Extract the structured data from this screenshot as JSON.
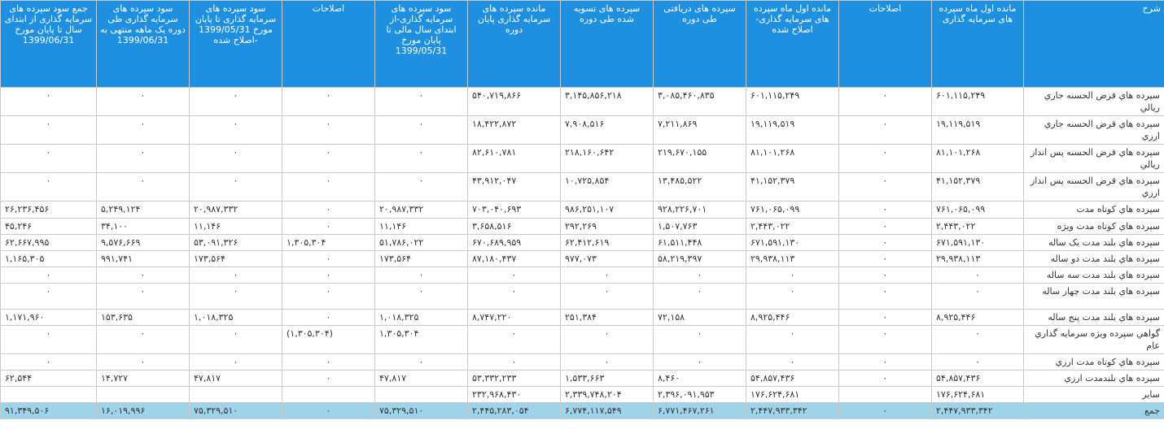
{
  "columns": [
    "شرح",
    "مانده اول ماه سپرده های سرمایه گذاری",
    "اصلاحات",
    "مانده اول ماه سپرده های سرمایه گذاری- اصلاح شده",
    "سپرده های دریافتی طی دوره",
    "سپرده های تسویه شده طی دوره",
    "مانده سپرده های سرمایه گذاری پایان دوره",
    "سود سپرده های سرمایه گذاری-از ابتدای سال مالی تا پایان مورخ 1399/05/31",
    "اصلاحات",
    "سود سپرده های سرمایه گذاری تا پایان مورخ 1399/05/31 -اصلاح شده",
    "سود سپرده های سرمایه گذاری طی دوره یک ماهه منتهی به 1399/06/31",
    "جمع سود سپرده های سرمایه گذاری از ابتدای سال تا پایان مورخ 1399/06/31"
  ],
  "rows": [
    [
      "سپرده هاي قرض الحسنه جاري ريالي",
      "۶۰۱,۱۱۵,۲۴۹",
      "۰",
      "۶۰۱,۱۱۵,۲۴۹",
      "۳,۰۸۵,۴۶۰,۸۳۵",
      "۳,۱۴۵,۸۵۶,۲۱۸",
      "۵۴۰,۷۱۹,۸۶۶",
      "۰",
      "۰",
      "۰",
      "۰",
      "۰"
    ],
    [
      "سپرده هاي قرض الحسنه جاري ارزي",
      "۱۹,۱۱۹,۵۱۹",
      "۰",
      "۱۹,۱۱۹,۵۱۹",
      "۷,۲۱۱,۸۶۹",
      "۷,۹۰۸,۵۱۶",
      "۱۸,۴۲۲,۸۷۲",
      "۰",
      "۰",
      "۰",
      "۰",
      "۰"
    ],
    [
      "سپرده هاي قرض الحسنه پس انداز ريالي",
      "۸۱,۱۰۱,۲۶۸",
      "۰",
      "۸۱,۱۰۱,۲۶۸",
      "۲۱۹,۶۷۰,۱۵۵",
      "۲۱۸,۱۶۰,۶۴۲",
      "۸۲,۶۱۰,۷۸۱",
      "۰",
      "۰",
      "۰",
      "۰",
      "۰"
    ],
    [
      "سپرده هاي قرض الحسنه پس انداز ارزي",
      "۴۱,۱۵۲,۳۷۹",
      "۰",
      "۴۱,۱۵۲,۳۷۹",
      "۱۳,۴۸۵,۵۲۲",
      "۱۰,۷۲۵,۸۵۴",
      "۴۳,۹۱۲,۰۴۷",
      "۰",
      "۰",
      "۰",
      "۰",
      "۰"
    ],
    [
      "سپرده هاي کوتاه مدت",
      "۷۶۱,۰۶۵,۰۹۹",
      "۰",
      "۷۶۱,۰۶۵,۰۹۹",
      "۹۲۸,۲۲۶,۷۰۱",
      "۹۸۶,۲۵۱,۱۰۷",
      "۷۰۳,۰۴۰,۶۹۳",
      "۲۰,۹۸۷,۳۳۲",
      "۰",
      "۲۰,۹۸۷,۳۳۲",
      "۵,۲۴۹,۱۲۴",
      "۲۶,۲۳۶,۴۵۶"
    ],
    [
      "سپرده هاي کوتاه مدت ويژه",
      "۲,۴۴۳,۰۲۲",
      "۰",
      "۲,۴۴۳,۰۲۲",
      "۱,۵۰۷,۷۶۳",
      "۲۹۲,۲۶۹",
      "۳,۶۵۸,۵۱۶",
      "۱۱,۱۴۶",
      "۰",
      "۱۱,۱۴۶",
      "۳۴,۱۰۰",
      "۴۵,۲۴۶"
    ],
    [
      "سپرده هاي بلند مدت يک ساله",
      "۶۷۱,۵۹۱,۱۳۰",
      "۰",
      "۶۷۱,۵۹۱,۱۳۰",
      "۶۱,۵۱۱,۴۴۸",
      "۶۲,۴۱۲,۶۱۹",
      "۶۷۰,۶۸۹,۹۵۹",
      "۵۱,۷۸۶,۰۲۲",
      "۱,۳۰۵,۳۰۴",
      "۵۳,۰۹۱,۳۲۶",
      "۹,۵۷۶,۶۶۹",
      "۶۲,۶۶۷,۹۹۵"
    ],
    [
      "سپرده هاي بلند مدت دو ساله",
      "۲۹,۹۳۸,۱۱۳",
      "۰",
      "۲۹,۹۳۸,۱۱۳",
      "۵۸,۲۱۹,۳۹۷",
      "۹۷۷,۰۷۳",
      "۸۷,۱۸۰,۴۳۷",
      "۱۷۳,۵۶۴",
      "۰",
      "۱۷۳,۵۶۴",
      "۹۹۱,۷۴۱",
      "۱,۱۶۵,۳۰۵"
    ],
    [
      "سپرده هاي بلند مدت سه ساله",
      "۰",
      "۰",
      "۰",
      "۰",
      "۰",
      "۰",
      "۰",
      "۰",
      "۰",
      "۰",
      "۰"
    ],
    [
      "سپرده هاي بلند مدت چهار ساله",
      "۰",
      "۰",
      "۰",
      "۰",
      "۰",
      "۰",
      "۰",
      "۰",
      "۰",
      "۰",
      "۰"
    ],
    [
      "سپرده هاي بلند مدت پنج ساله",
      "۸,۹۲۵,۴۴۶",
      "۰",
      "۸,۹۲۵,۴۴۶",
      "۷۲,۱۵۸",
      "۲۵۱,۳۸۴",
      "۸,۷۴۷,۲۲۰",
      "۱,۰۱۸,۳۲۵",
      "۰",
      "۱,۰۱۸,۳۲۵",
      "۱۵۳,۶۳۵",
      "۱,۱۷۱,۹۶۰"
    ],
    [
      "گواهي سپرده ويژه سرمايه گذاري عام",
      "۰",
      "۰",
      "۰",
      "۰",
      "۰",
      "۰",
      "۱,۳۰۵,۳۰۴",
      "(۱,۳۰۵,۳۰۴)",
      "۰",
      "۰",
      "۰"
    ],
    [
      "سپرده هاي کوتاه مدت ارزي",
      "۰",
      "۰",
      "۰",
      "۰",
      "۰",
      "۰",
      "۰",
      "۰",
      "۰",
      "۰",
      "۰"
    ],
    [
      "سپرده هاي بلندمدت ارزي",
      "۵۴,۸۵۷,۴۳۶",
      "۰",
      "۵۴,۸۵۷,۴۳۶",
      "۸,۴۶۰",
      "۱,۵۳۳,۶۶۳",
      "۵۳,۳۳۲,۲۳۳",
      "۴۷,۸۱۷",
      "۰",
      "۴۷,۸۱۷",
      "۱۴,۷۲۷",
      "۶۲,۵۴۴"
    ],
    [
      "ساير",
      "۱۷۶,۶۲۴,۶۸۱",
      "",
      "۱۷۶,۶۲۴,۶۸۱",
      "۲,۳۹۶,۰۹۱,۹۵۳",
      "۲,۳۳۹,۷۴۸,۲۰۴",
      "۲۳۲,۹۶۸,۴۳۰",
      "",
      "",
      "",
      "",
      ""
    ]
  ],
  "total": [
    "جمع",
    "۲,۴۴۷,۹۳۳,۳۴۲",
    "۰",
    "۲,۴۴۷,۹۳۳,۳۴۲",
    "۶,۷۷۱,۴۶۷,۲۶۱",
    "۶,۷۷۴,۱۱۷,۵۴۹",
    "۲,۴۴۵,۲۸۳,۰۵۴",
    "۷۵,۳۲۹,۵۱۰",
    "۰",
    "۷۵,۳۲۹,۵۱۰",
    "۱۶,۰۱۹,۹۹۶",
    "۹۱,۳۴۹,۵۰۶"
  ]
}
